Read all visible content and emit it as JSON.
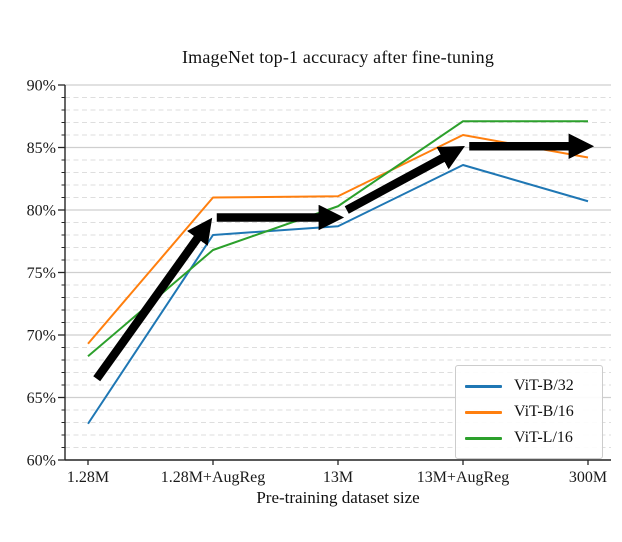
{
  "title": "ImageNet top-1 accuracy after fine-tuning",
  "chart_data": {
    "type": "line",
    "categories": [
      "1.28M",
      "1.28M+AugReg",
      "13M",
      "13M+AugReg",
      "300M"
    ],
    "series": [
      {
        "name": "ViT-B/32",
        "color": "#1f77b4",
        "values": [
          62.9,
          78.0,
          78.7,
          83.6,
          80.7
        ]
      },
      {
        "name": "ViT-B/16",
        "color": "#ff7f0e",
        "values": [
          69.3,
          81.0,
          81.1,
          86.0,
          84.2
        ]
      },
      {
        "name": "ViT-L/16",
        "color": "#2ca02c",
        "values": [
          68.3,
          76.8,
          80.3,
          87.1,
          87.1
        ]
      }
    ],
    "xlabel": "Pre-training dataset size",
    "ylabel": "",
    "ylim": [
      60,
      90
    ],
    "yticks_major": [
      60,
      65,
      70,
      75,
      80,
      85,
      90
    ],
    "ytick_suffix": "%",
    "minor_gridline_step": 1,
    "grid": "horizontal, solid major + dashed minor",
    "legend_position": "lower right",
    "annotation_arrows": [
      {
        "from_x": 0.07,
        "from_y": 66.5,
        "to_x": 0.93,
        "to_y": 78.5
      },
      {
        "from_x": 1.03,
        "from_y": 79.4,
        "to_x": 1.94,
        "to_y": 79.4
      },
      {
        "from_x": 2.07,
        "from_y": 80.0,
        "to_x": 2.92,
        "to_y": 84.6
      },
      {
        "from_x": 3.05,
        "from_y": 85.1,
        "to_x": 3.94,
        "to_y": 85.1
      }
    ],
    "arrow_color": "#000000"
  },
  "style_colors": {
    "major_grid": "#cfcfcf",
    "minor_grid": "#dedede",
    "spine": "#262626"
  }
}
